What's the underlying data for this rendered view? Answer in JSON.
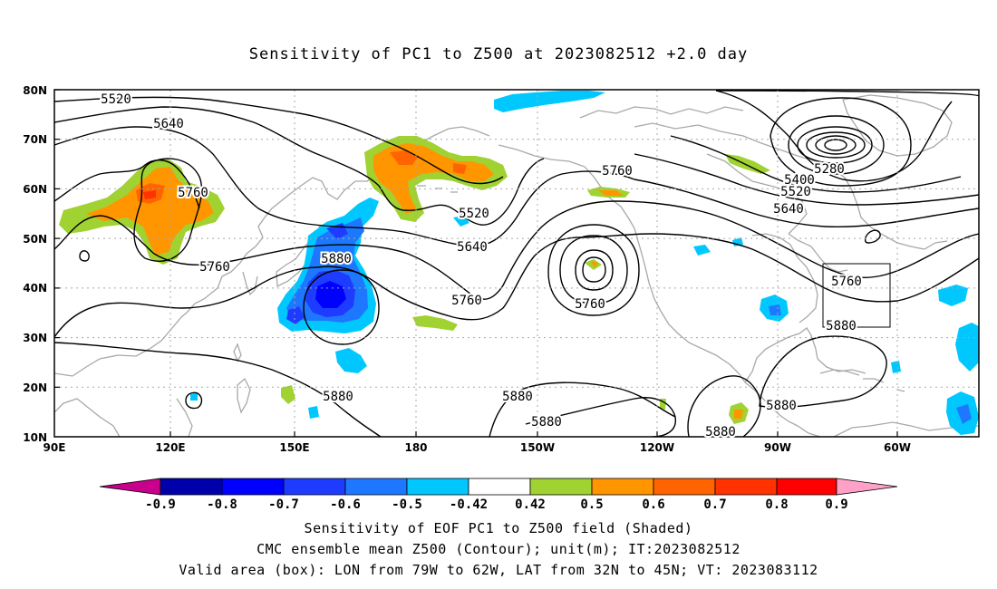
{
  "title": "Sensitivity of PC1 to Z500 at 2023082512 +2.0 day",
  "lat_labels": [
    "80N",
    "70N",
    "60N",
    "50N",
    "40N",
    "30N",
    "20N",
    "10N"
  ],
  "lon_labels": [
    "90E",
    "120E",
    "150E",
    "180",
    "150W",
    "120W",
    "90W",
    "60W"
  ],
  "contour_labels": [
    "5520",
    "5640",
    "5760",
    "5520",
    "5640",
    "5760",
    "5880",
    "5760",
    "5760",
    "5280",
    "5400",
    "5520",
    "5640",
    "5760",
    "5880",
    "5880",
    "5880",
    "5880",
    "5880",
    "5760",
    "5880"
  ],
  "colorbar": {
    "labels": [
      "-0.9",
      "-0.8",
      "-0.7",
      "-0.6",
      "-0.5",
      "-0.42",
      "0.42",
      "0.5",
      "0.6",
      "0.7",
      "0.8",
      "0.9"
    ],
    "colors": [
      "#c8008c",
      "#0000aa",
      "#0000ff",
      "#1e3cff",
      "#1e78ff",
      "#00c8ff",
      "#ffffff",
      "#a0d232",
      "#ff9600",
      "#ff6400",
      "#ff3200",
      "#ff0000",
      "#ffa0c8"
    ]
  },
  "captions": {
    "line1": "Sensitivity of EOF PC1 to Z500 field (Shaded)",
    "line2": "CMC ensemble mean Z500 (Contour); unit(m); IT:2023082512",
    "line3": "Valid area (box): LON from 79W to 62W, LAT from 32N to 45N; VT: 2023083112"
  },
  "valid_box": {
    "lon": [
      -79,
      -62
    ],
    "lat": [
      32,
      45
    ]
  }
}
